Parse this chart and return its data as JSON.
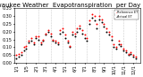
{
  "title": "Milwaukee Weather  Evapotranspiration  per Day (Inches)",
  "background_color": "#ffffff",
  "plot_bg_color": "#ffffff",
  "grid_color": "#cccccc",
  "xlim": [
    0,
    52
  ],
  "ylim": [
    0,
    0.35
  ],
  "yticks": [
    0.0,
    0.05,
    0.1,
    0.15,
    0.2,
    0.25,
    0.3,
    0.35
  ],
  "ytick_labels": [
    "0.00",
    "0.05",
    "0.10",
    "0.15",
    "0.20",
    "0.25",
    "0.30",
    "0.35"
  ],
  "x_black": [
    1,
    2,
    3,
    4,
    5,
    6,
    7,
    8,
    9,
    10,
    11,
    12,
    13,
    14,
    15,
    16,
    17,
    18,
    19,
    20,
    21,
    22,
    23,
    24,
    25,
    26,
    27,
    28,
    29,
    30,
    31,
    32,
    33,
    34,
    35,
    36,
    37,
    38,
    39,
    40,
    41,
    42,
    43,
    44,
    45,
    46,
    47,
    48,
    49,
    50
  ],
  "y_black": [
    0.03,
    0.04,
    0.05,
    0.08,
    0.09,
    0.13,
    0.14,
    0.12,
    0.16,
    0.15,
    0.12,
    0.14,
    0.18,
    0.2,
    0.17,
    0.14,
    0.13,
    0.12,
    0.19,
    0.2,
    0.16,
    0.13,
    0.1,
    0.18,
    0.17,
    0.2,
    0.22,
    0.19,
    0.16,
    0.14,
    0.25,
    0.29,
    0.27,
    0.22,
    0.28,
    0.26,
    0.23,
    0.2,
    0.18,
    0.15,
    0.1,
    0.09,
    0.12,
    0.11,
    0.08,
    0.07,
    0.05,
    0.06,
    0.04,
    0.03
  ],
  "x_red": [
    1,
    2,
    3,
    4,
    5,
    6,
    7,
    8,
    9,
    10,
    11,
    12,
    13,
    14,
    15,
    16,
    17,
    18,
    19,
    20,
    21,
    22,
    23,
    24,
    25,
    26,
    27,
    28,
    29,
    30,
    31,
    32,
    33,
    34,
    35,
    36,
    37,
    38,
    39,
    40,
    41,
    42,
    43,
    44,
    45,
    46,
    47,
    48,
    49,
    50
  ],
  "y_red": [
    0.05,
    0.06,
    0.07,
    0.1,
    0.11,
    0.14,
    0.16,
    0.13,
    0.17,
    0.17,
    0.13,
    0.15,
    0.19,
    0.21,
    0.19,
    0.15,
    0.14,
    0.13,
    0.21,
    0.22,
    0.18,
    0.14,
    0.11,
    0.2,
    0.19,
    0.22,
    0.24,
    0.21,
    0.18,
    0.16,
    0.27,
    0.31,
    0.3,
    0.25,
    0.3,
    0.28,
    0.25,
    0.22,
    0.2,
    0.17,
    0.12,
    0.1,
    0.14,
    0.12,
    0.09,
    0.08,
    0.06,
    0.07,
    0.05,
    0.04
  ],
  "vline_positions": [
    5,
    10,
    15,
    20,
    25,
    30,
    35,
    40,
    45,
    50
  ],
  "xtick_positions": [
    1,
    5,
    9,
    13,
    17,
    21,
    25,
    29,
    33,
    37,
    41,
    45,
    49
  ],
  "xtick_labels": [
    "1/1",
    "1/5",
    "2/1",
    "3/1",
    "4/1",
    "5/1",
    "6/1",
    "7/1",
    "8/1",
    "9/1",
    "10/1",
    "11/1",
    "12/1"
  ],
  "dot_size_black": 2,
  "dot_size_red": 2,
  "legend_label_black": "Actual ET",
  "legend_label_red": "Reference ET",
  "title_fontsize": 5,
  "tick_fontsize": 3.5
}
